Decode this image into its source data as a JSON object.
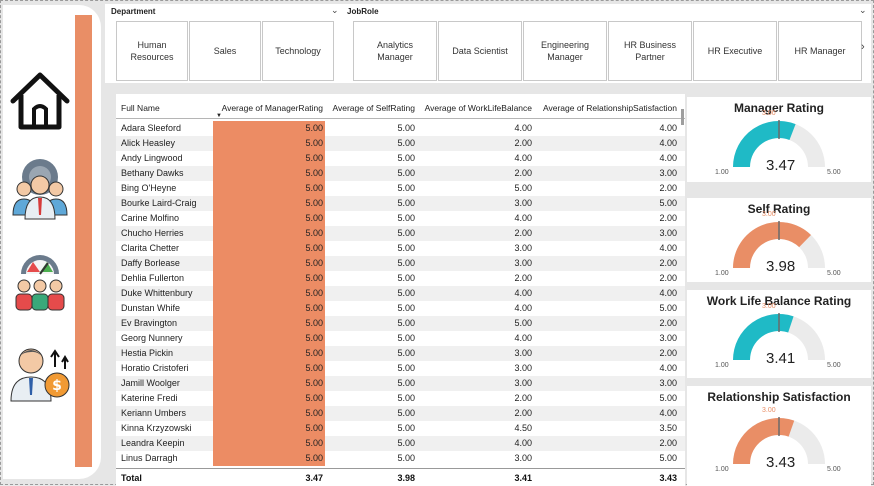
{
  "nav": {
    "icons": [
      "home-icon",
      "employee-settings-icon",
      "team-performance-icon",
      "salary-growth-icon"
    ]
  },
  "slicers": {
    "department": {
      "label": "Department",
      "options": [
        "Human Resources",
        "Sales",
        "Technology"
      ]
    },
    "jobrole": {
      "label": "JobRole",
      "options": [
        "Analytics Manager",
        "Data Scientist",
        "Engineering Manager",
        "HR Business Partner",
        "HR Executive",
        "HR Manager"
      ]
    }
  },
  "table": {
    "headers": {
      "name": "Full Name",
      "manager": "Average of ManagerRating",
      "self": "Average of SelfRating",
      "wlb": "Average of WorkLifeBalance",
      "rel": "Average of RelationshipSatisfaction"
    },
    "rows": [
      [
        "Adara Sleeford",
        "5.00",
        "5.00",
        "4.00",
        "4.00"
      ],
      [
        "Alick Heasley",
        "5.00",
        "5.00",
        "2.00",
        "4.00"
      ],
      [
        "Andy Lingwood",
        "5.00",
        "5.00",
        "4.00",
        "4.00"
      ],
      [
        "Bethany Dawks",
        "5.00",
        "5.00",
        "2.00",
        "3.00"
      ],
      [
        "Bing O'Heyne",
        "5.00",
        "5.00",
        "5.00",
        "2.00"
      ],
      [
        "Bourke Laird-Craig",
        "5.00",
        "5.00",
        "3.00",
        "5.00"
      ],
      [
        "Carine Molfino",
        "5.00",
        "5.00",
        "4.00",
        "2.00"
      ],
      [
        "Chucho Herries",
        "5.00",
        "5.00",
        "2.00",
        "3.00"
      ],
      [
        "Clarita Chetter",
        "5.00",
        "5.00",
        "3.00",
        "4.00"
      ],
      [
        "Daffy Borlease",
        "5.00",
        "5.00",
        "3.00",
        "2.00"
      ],
      [
        "Dehlia Fullerton",
        "5.00",
        "5.00",
        "2.00",
        "2.00"
      ],
      [
        "Duke Whittenbury",
        "5.00",
        "5.00",
        "4.00",
        "4.00"
      ],
      [
        "Dunstan Whife",
        "5.00",
        "5.00",
        "4.00",
        "5.00"
      ],
      [
        "Ev Bravington",
        "5.00",
        "5.00",
        "5.00",
        "2.00"
      ],
      [
        "Georg Nunnery",
        "5.00",
        "5.00",
        "4.00",
        "3.00"
      ],
      [
        "Hestia Pickin",
        "5.00",
        "5.00",
        "3.00",
        "2.00"
      ],
      [
        "Horatio Cristoferi",
        "5.00",
        "5.00",
        "3.00",
        "4.00"
      ],
      [
        "Jamill Woolger",
        "5.00",
        "5.00",
        "3.00",
        "3.00"
      ],
      [
        "Katerine Fredi",
        "5.00",
        "5.00",
        "2.00",
        "5.00"
      ],
      [
        "Keriann Umbers",
        "5.00",
        "5.00",
        "2.00",
        "4.00"
      ],
      [
        "Kinna Krzyzowski",
        "5.00",
        "5.00",
        "4.50",
        "3.50"
      ],
      [
        "Leandra Keepin",
        "5.00",
        "5.00",
        "4.00",
        "2.00"
      ],
      [
        "Linus Darragh",
        "5.00",
        "5.00",
        "3.00",
        "5.00"
      ]
    ],
    "total": {
      "label": "Total",
      "manager": "3.47",
      "self": "3.98",
      "wlb": "3.41",
      "rel": "3.43"
    }
  },
  "gauges": [
    {
      "title": "Manager Rating",
      "value": 3.47,
      "value_label": "3.47",
      "min": 1,
      "max": 5,
      "min_label": "1.00",
      "max_label": "5.00",
      "target": 3,
      "target_label": "3.00",
      "color": "#1fbac6"
    },
    {
      "title": "Self Rating",
      "value": 3.98,
      "value_label": "3.98",
      "min": 1,
      "max": 5,
      "min_label": "1.00",
      "max_label": "5.00",
      "target": 3,
      "target_label": "3.00",
      "color": "#e98e66"
    },
    {
      "title": "Work Life Balance Rating",
      "value": 3.41,
      "value_label": "3.41",
      "min": 1,
      "max": 5,
      "min_label": "1.00",
      "max_label": "5.00",
      "target": 3,
      "target_label": "3.00",
      "color": "#1fbac6"
    },
    {
      "title": "Relationship Satisfaction",
      "value": 3.43,
      "value_label": "3.43",
      "min": 1,
      "max": 5,
      "min_label": "1.00",
      "max_label": "5.00",
      "target": 3,
      "target_label": "3.00",
      "color": "#e98e66"
    }
  ],
  "colors": {
    "accent_orange": "#e98e66",
    "accent_teal": "#1fbac6",
    "gauge_track": "#ebebeb"
  }
}
